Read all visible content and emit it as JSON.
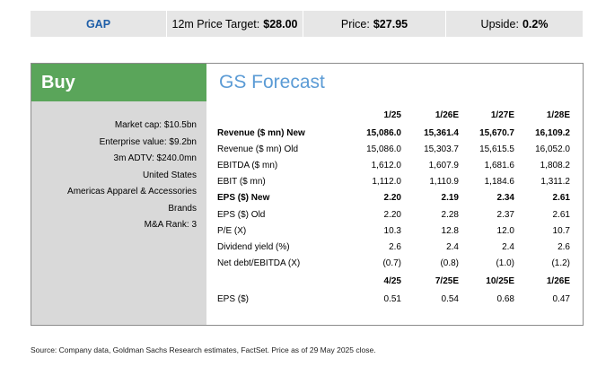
{
  "header": {
    "ticker": "GAP",
    "price_target_label": "12m Price Target:",
    "price_target_value": "$28.00",
    "price_label": "Price:",
    "price_value": "$27.95",
    "upside_label": "Upside:",
    "upside_value": "0.2%"
  },
  "rating": "Buy",
  "stats": [
    "Market cap: $10.5bn",
    "Enterprise value: $9.2bn",
    "3m ADTV: $240.0mn",
    "United States",
    "Americas Apparel & Accessories",
    "Brands",
    "M&A Rank: 3"
  ],
  "forecast": {
    "title": "GS Forecast",
    "periods": [
      "1/25",
      "1/26E",
      "1/27E",
      "1/28E"
    ],
    "rows": [
      {
        "label": "Revenue ($ mn) New",
        "bold": true,
        "values": [
          "15,086.0",
          "15,361.4",
          "15,670.7",
          "16,109.2"
        ]
      },
      {
        "label": "Revenue ($ mn) Old",
        "bold": false,
        "values": [
          "15,086.0",
          "15,303.7",
          "15,615.5",
          "16,052.0"
        ]
      },
      {
        "label": "EBITDA ($ mn)",
        "bold": false,
        "values": [
          "1,612.0",
          "1,607.9",
          "1,681.6",
          "1,808.2"
        ]
      },
      {
        "label": "EBIT ($ mn)",
        "bold": false,
        "values": [
          "1,112.0",
          "1,110.9",
          "1,184.6",
          "1,311.2"
        ]
      },
      {
        "label": "EPS ($) New",
        "bold": true,
        "values": [
          "2.20",
          "2.19",
          "2.34",
          "2.61"
        ]
      },
      {
        "label": "EPS ($) Old",
        "bold": false,
        "values": [
          "2.20",
          "2.28",
          "2.37",
          "2.61"
        ]
      },
      {
        "label": "P/E (X)",
        "bold": false,
        "values": [
          "10.3",
          "12.8",
          "12.0",
          "10.7"
        ]
      },
      {
        "label": "Dividend yield (%)",
        "bold": false,
        "values": [
          "2.6",
          "2.4",
          "2.4",
          "2.6"
        ]
      },
      {
        "label": "Net debt/EBITDA (X)",
        "bold": false,
        "values": [
          "(0.7)",
          "(0.8)",
          "(1.0)",
          "(1.2)"
        ]
      }
    ],
    "quarter_periods": [
      "4/25",
      "7/25E",
      "10/25E",
      "1/26E"
    ],
    "quarter_rows": [
      {
        "label": "EPS ($)",
        "bold": false,
        "values": [
          "0.51",
          "0.54",
          "0.68",
          "0.47"
        ]
      }
    ]
  },
  "footnote": "Source: Company data, Goldman Sachs Research estimates, FactSet. Price as of 29 May 2025 close.",
  "colors": {
    "buy_green": "#5aa55a",
    "ticker_blue": "#1f5fa8",
    "title_blue": "#5b9bd5"
  }
}
